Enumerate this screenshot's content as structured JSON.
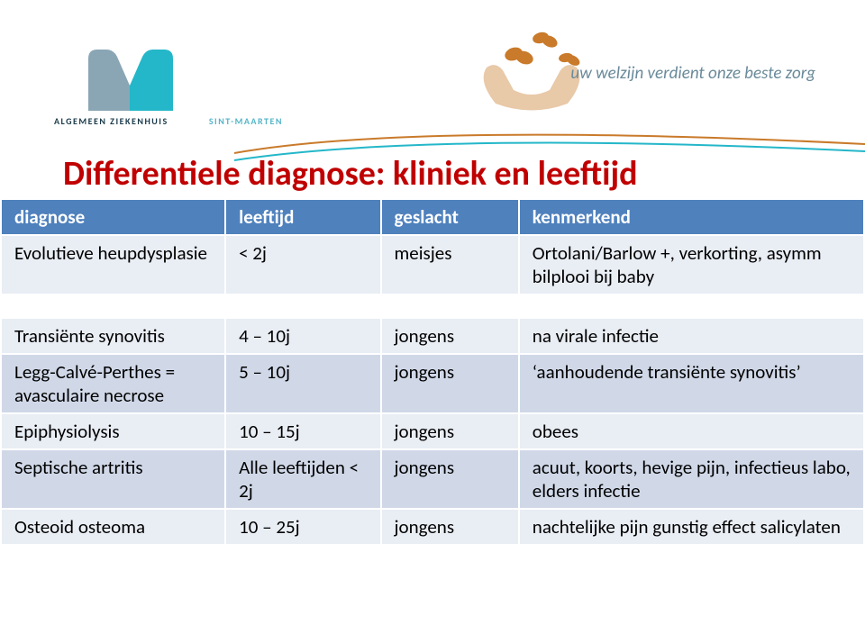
{
  "logo": {
    "text_left": "ALGEMEEN ZIEKENHUIS",
    "text_right": "SINT-MAARTEN",
    "m_color_left": "#8aa6b5",
    "m_color_right": "#24b7c9"
  },
  "tagline": "uw welzijn verdient onze beste zorg",
  "title": "Differentiele diagnose: kliniek en leeftijd",
  "table": {
    "header_bg": "#4f81bd",
    "band_bg": "#e9edf4",
    "alt_bg": "#d0d8e8",
    "columns": [
      "diagnose",
      "leeftijd",
      "geslacht",
      "kenmerkend"
    ],
    "rows": [
      {
        "diag": "Evolutieve heupdysplasie",
        "age": "< 2j",
        "sex": "meisjes",
        "ken": "Ortolani/Barlow +, verkorting, asymm bilplooi bij baby",
        "cls": "band"
      },
      {
        "spacer": true
      },
      {
        "diag": "Transiënte synovitis",
        "age": "4 – 10j",
        "sex": "jongens",
        "ken": "na virale infectie",
        "cls": "band"
      },
      {
        "diag": "Legg-Calvé-Perthes = avasculaire necrose",
        "age": "5 – 10j",
        "sex": "jongens",
        "ken": "‘aanhoudende transiënte synovitis’",
        "cls": "alt"
      },
      {
        "diag": "Epiphysiolysis",
        "age": "10 – 15j",
        "sex": "jongens",
        "ken": "obees",
        "cls": "band"
      },
      {
        "diag": "Septische artritis",
        "age": "Alle leeftijden < 2j",
        "sex": "jongens",
        "ken": "acuut, koorts, hevige pijn, infectieus labo, elders infectie",
        "cls": "alt"
      },
      {
        "diag": "Osteoid osteoma",
        "age": "10 – 25j",
        "sex": "jongens",
        "ken": "nachtelijke pijn gunstig effect salicylaten",
        "cls": "band"
      }
    ]
  }
}
